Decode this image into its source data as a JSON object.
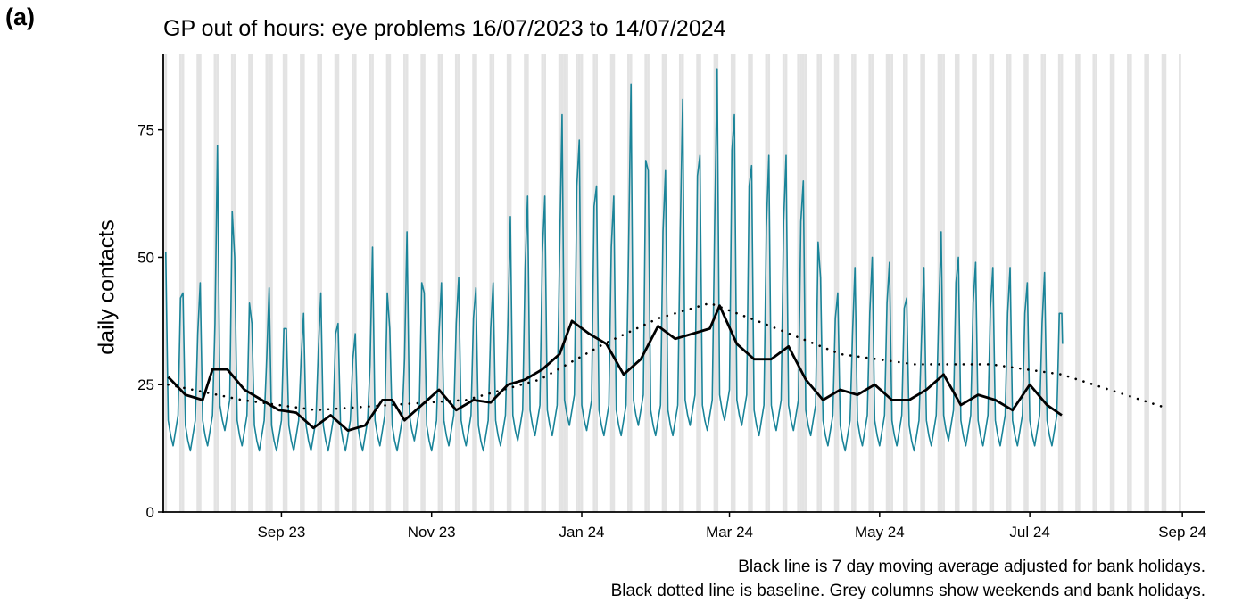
{
  "panel_label": "(a)",
  "captions": [
    "Black line is 7 day moving average adjusted for bank holidays.",
    "Black dotted line is baseline. Grey columns show weekends and bank holidays."
  ],
  "colors": {
    "daily": "#1a8499",
    "moving_average": "#000000",
    "baseline": "#000000",
    "weekend_columns": "#e3e3e3"
  },
  "chart_data": {
    "type": "line",
    "title": "GP out of hours: eye problems 16/07/2023 to 14/07/2024",
    "ylabel": "daily contacts",
    "xlabel": "",
    "x_start": "2023-07-16",
    "x_end": "2024-07-14",
    "xlim": [
      "2023-07-15",
      "2024-09-10"
    ],
    "ylim": [
      0,
      90
    ],
    "x_ticks": [
      {
        "date": "2023-09-01",
        "label": "Sep 23"
      },
      {
        "date": "2023-11-01",
        "label": "Nov 23"
      },
      {
        "date": "2024-01-01",
        "label": "Jan 24"
      },
      {
        "date": "2024-03-01",
        "label": "Mar 24"
      },
      {
        "date": "2024-05-01",
        "label": "May 24"
      },
      {
        "date": "2024-07-01",
        "label": "Jul 24"
      },
      {
        "date": "2024-09-01",
        "label": "Sep 24"
      }
    ],
    "y_ticks": [
      0,
      25,
      50,
      75
    ],
    "shaded_columns_end": "2024-08-31",
    "bank_holidays": [
      "2023-08-28",
      "2023-12-25",
      "2023-12-26",
      "2024-01-01",
      "2024-03-29",
      "2024-04-01",
      "2024-05-06",
      "2024-05-27"
    ],
    "series": [
      {
        "name": "daily contacts",
        "style": "thin teal line",
        "weekly_peaks": [
          {
            "date": "2023-07-16",
            "value": 51
          },
          {
            "date": "2023-07-23",
            "value": 43
          },
          {
            "date": "2023-07-30",
            "value": 45
          },
          {
            "date": "2023-08-06",
            "value": 72
          },
          {
            "date": "2023-08-13",
            "value": 50
          },
          {
            "date": "2023-08-20",
            "value": 37
          },
          {
            "date": "2023-08-27",
            "value": 44
          },
          {
            "date": "2023-09-03",
            "value": 36
          },
          {
            "date": "2023-09-10",
            "value": 39
          },
          {
            "date": "2023-09-17",
            "value": 43
          },
          {
            "date": "2023-09-24",
            "value": 37
          },
          {
            "date": "2023-10-01",
            "value": 35
          },
          {
            "date": "2023-10-08",
            "value": 52
          },
          {
            "date": "2023-10-15",
            "value": 36
          },
          {
            "date": "2023-10-22",
            "value": 55
          },
          {
            "date": "2023-10-29",
            "value": 43
          },
          {
            "date": "2023-11-05",
            "value": 45
          },
          {
            "date": "2023-11-12",
            "value": 46
          },
          {
            "date": "2023-11-19",
            "value": 44
          },
          {
            "date": "2023-11-26",
            "value": 45
          },
          {
            "date": "2023-12-03",
            "value": 58
          },
          {
            "date": "2023-12-10",
            "value": 62
          },
          {
            "date": "2023-12-17",
            "value": 62
          },
          {
            "date": "2023-12-24",
            "value": 78
          },
          {
            "date": "2023-12-31",
            "value": 73
          },
          {
            "date": "2024-01-07",
            "value": 64
          },
          {
            "date": "2024-01-14",
            "value": 62
          },
          {
            "date": "2024-01-21",
            "value": 84
          },
          {
            "date": "2024-01-28",
            "value": 67
          },
          {
            "date": "2024-02-04",
            "value": 67
          },
          {
            "date": "2024-02-11",
            "value": 81
          },
          {
            "date": "2024-02-18",
            "value": 70
          },
          {
            "date": "2024-02-25",
            "value": 87
          },
          {
            "date": "2024-03-03",
            "value": 78
          },
          {
            "date": "2024-03-10",
            "value": 68
          },
          {
            "date": "2024-03-17",
            "value": 70
          },
          {
            "date": "2024-03-24",
            "value": 70
          },
          {
            "date": "2024-03-31",
            "value": 65
          },
          {
            "date": "2024-04-07",
            "value": 46
          },
          {
            "date": "2024-04-14",
            "value": 43
          },
          {
            "date": "2024-04-21",
            "value": 48
          },
          {
            "date": "2024-04-28",
            "value": 50
          },
          {
            "date": "2024-05-05",
            "value": 49
          },
          {
            "date": "2024-05-12",
            "value": 42
          },
          {
            "date": "2024-05-19",
            "value": 48
          },
          {
            "date": "2024-05-26",
            "value": 55
          },
          {
            "date": "2024-06-02",
            "value": 50
          },
          {
            "date": "2024-06-09",
            "value": 49
          },
          {
            "date": "2024-06-16",
            "value": 48
          },
          {
            "date": "2024-06-23",
            "value": 48
          },
          {
            "date": "2024-06-30",
            "value": 45
          },
          {
            "date": "2024-07-07",
            "value": 47
          },
          {
            "date": "2024-07-14",
            "value": 39
          }
        ],
        "weekday_low": 13,
        "end_value": 33
      },
      {
        "name": "7 day moving average",
        "style": "thick black line",
        "points": [
          {
            "date": "2023-07-17",
            "value": 26.5
          },
          {
            "date": "2023-07-24",
            "value": 23
          },
          {
            "date": "2023-07-31",
            "value": 22
          },
          {
            "date": "2023-08-04",
            "value": 28
          },
          {
            "date": "2023-08-10",
            "value": 28
          },
          {
            "date": "2023-08-17",
            "value": 24
          },
          {
            "date": "2023-08-24",
            "value": 22
          },
          {
            "date": "2023-08-31",
            "value": 20
          },
          {
            "date": "2023-09-07",
            "value": 19.5
          },
          {
            "date": "2023-09-14",
            "value": 16.5
          },
          {
            "date": "2023-09-21",
            "value": 19
          },
          {
            "date": "2023-09-28",
            "value": 16
          },
          {
            "date": "2023-10-05",
            "value": 17
          },
          {
            "date": "2023-10-12",
            "value": 22
          },
          {
            "date": "2023-10-16",
            "value": 22
          },
          {
            "date": "2023-10-21",
            "value": 18
          },
          {
            "date": "2023-10-28",
            "value": 21
          },
          {
            "date": "2023-11-04",
            "value": 24
          },
          {
            "date": "2023-11-11",
            "value": 20
          },
          {
            "date": "2023-11-18",
            "value": 22
          },
          {
            "date": "2023-11-25",
            "value": 21.5
          },
          {
            "date": "2023-12-02",
            "value": 25
          },
          {
            "date": "2023-12-09",
            "value": 26
          },
          {
            "date": "2023-12-16",
            "value": 28
          },
          {
            "date": "2023-12-23",
            "value": 31
          },
          {
            "date": "2023-12-28",
            "value": 37.5
          },
          {
            "date": "2024-01-04",
            "value": 35
          },
          {
            "date": "2024-01-11",
            "value": 33
          },
          {
            "date": "2024-01-18",
            "value": 27
          },
          {
            "date": "2024-01-25",
            "value": 30
          },
          {
            "date": "2024-02-01",
            "value": 36.5
          },
          {
            "date": "2024-02-08",
            "value": 34
          },
          {
            "date": "2024-02-15",
            "value": 35
          },
          {
            "date": "2024-02-22",
            "value": 36
          },
          {
            "date": "2024-02-26",
            "value": 40.5
          },
          {
            "date": "2024-03-04",
            "value": 33
          },
          {
            "date": "2024-03-11",
            "value": 30
          },
          {
            "date": "2024-03-18",
            "value": 30
          },
          {
            "date": "2024-03-25",
            "value": 32.5
          },
          {
            "date": "2024-04-01",
            "value": 26
          },
          {
            "date": "2024-04-08",
            "value": 22
          },
          {
            "date": "2024-04-15",
            "value": 24
          },
          {
            "date": "2024-04-22",
            "value": 23
          },
          {
            "date": "2024-04-29",
            "value": 25
          },
          {
            "date": "2024-05-06",
            "value": 22
          },
          {
            "date": "2024-05-13",
            "value": 22
          },
          {
            "date": "2024-05-20",
            "value": 24
          },
          {
            "date": "2024-05-27",
            "value": 27
          },
          {
            "date": "2024-06-03",
            "value": 21
          },
          {
            "date": "2024-06-10",
            "value": 23
          },
          {
            "date": "2024-06-17",
            "value": 22
          },
          {
            "date": "2024-06-24",
            "value": 20
          },
          {
            "date": "2024-07-01",
            "value": 25
          },
          {
            "date": "2024-07-08",
            "value": 21
          },
          {
            "date": "2024-07-14",
            "value": 19
          }
        ]
      },
      {
        "name": "baseline",
        "style": "black dotted line",
        "points": [
          {
            "date": "2023-07-17",
            "value": 25
          },
          {
            "date": "2023-08-16",
            "value": 22
          },
          {
            "date": "2023-09-15",
            "value": 20
          },
          {
            "date": "2023-10-15",
            "value": 21
          },
          {
            "date": "2023-11-15",
            "value": 22
          },
          {
            "date": "2023-12-15",
            "value": 26
          },
          {
            "date": "2024-01-10",
            "value": 33
          },
          {
            "date": "2024-02-01",
            "value": 38
          },
          {
            "date": "2024-02-22",
            "value": 41
          },
          {
            "date": "2024-03-15",
            "value": 37
          },
          {
            "date": "2024-04-15",
            "value": 31
          },
          {
            "date": "2024-05-15",
            "value": 29
          },
          {
            "date": "2024-06-15",
            "value": 29
          },
          {
            "date": "2024-07-14",
            "value": 27
          },
          {
            "date": "2024-08-25",
            "value": 20.5
          }
        ]
      }
    ],
    "grid": false,
    "legend": "none"
  }
}
